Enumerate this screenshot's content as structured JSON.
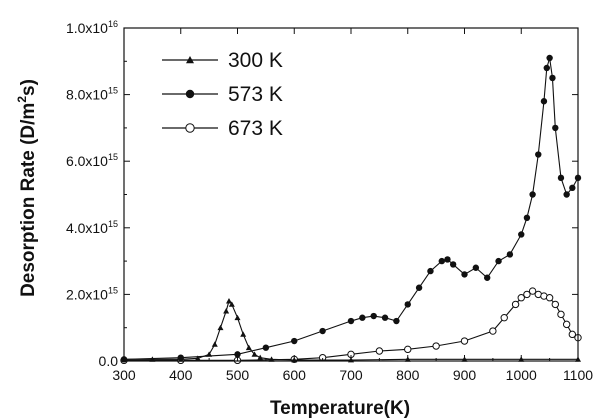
{
  "chart_data": {
    "type": "line",
    "title": "",
    "xlabel": "Temperature(K)",
    "ylabel_parts": {
      "pre": "Desorption Rate (D/m",
      "sup": "2",
      "post": "s)"
    },
    "xlim": [
      300,
      1100
    ],
    "ylim": [
      0,
      1e+16
    ],
    "x_ticks": [
      300,
      400,
      500,
      600,
      700,
      800,
      900,
      1000,
      1100
    ],
    "y_ticks": [
      {
        "value": 0,
        "mant": "0.0",
        "exp": ""
      },
      {
        "value": 2000000000000000.0,
        "mant": "2.0x10",
        "exp": "15"
      },
      {
        "value": 4000000000000000.0,
        "mant": "4.0x10",
        "exp": "15"
      },
      {
        "value": 6000000000000000.0,
        "mant": "6.0x10",
        "exp": "15"
      },
      {
        "value": 8000000000000000.0,
        "mant": "8.0x10",
        "exp": "15"
      },
      {
        "value": 1e+16,
        "mant": "1.0x10",
        "exp": "16"
      }
    ],
    "legend_position": "top-left",
    "series": [
      {
        "name": "300 K",
        "marker": "triangle",
        "x": [
          300,
          350,
          400,
          430,
          450,
          460,
          470,
          480,
          485,
          490,
          500,
          510,
          520,
          530,
          540,
          560,
          600,
          700,
          800,
          900,
          1000,
          1100
        ],
        "y": [
          50000000000000.0,
          50000000000000.0,
          50000000000000.0,
          80000000000000.0,
          200000000000000.0,
          500000000000000.0,
          1000000000000000.0,
          1500000000000000.0,
          1800000000000000.0,
          1700000000000000.0,
          1300000000000000.0,
          800000000000000.0,
          400000000000000.0,
          200000000000000.0,
          100000000000000.0,
          50000000000000.0,
          30000000000000.0,
          30000000000000.0,
          50000000000000.0,
          50000000000000.0,
          50000000000000.0,
          50000000000000.0
        ]
      },
      {
        "name": "573 K",
        "marker": "filled-circle",
        "x": [
          300,
          400,
          500,
          550,
          600,
          650,
          700,
          720,
          740,
          760,
          780,
          800,
          820,
          840,
          860,
          870,
          880,
          900,
          920,
          940,
          960,
          980,
          1000,
          1010,
          1020,
          1030,
          1040,
          1045,
          1050,
          1055,
          1060,
          1070,
          1080,
          1090,
          1100
        ],
        "y": [
          50000000000000.0,
          100000000000000.0,
          200000000000000.0,
          400000000000000.0,
          600000000000000.0,
          900000000000000.0,
          1200000000000000.0,
          1300000000000000.0,
          1350000000000000.0,
          1300000000000000.0,
          1200000000000000.0,
          1700000000000000.0,
          2200000000000000.0,
          2700000000000000.0,
          3000000000000000.0,
          3050000000000000.0,
          2900000000000000.0,
          2600000000000000.0,
          2800000000000000.0,
          2500000000000000.0,
          3000000000000000.0,
          3200000000000000.0,
          3800000000000000.0,
          4300000000000000.0,
          5000000000000000.0,
          6200000000000000.0,
          7800000000000000.0,
          8800000000000000.0,
          9100000000000000.0,
          8500000000000000.0,
          7000000000000000.0,
          5500000000000000.0,
          5000000000000000.0,
          5200000000000000.0,
          5500000000000000.0
        ]
      },
      {
        "name": "673 K",
        "marker": "open-circle",
        "x": [
          300,
          400,
          500,
          600,
          650,
          700,
          750,
          800,
          850,
          900,
          950,
          970,
          990,
          1000,
          1010,
          1020,
          1030,
          1040,
          1050,
          1060,
          1070,
          1080,
          1090,
          1100
        ],
        "y": [
          20000000000000.0,
          20000000000000.0,
          20000000000000.0,
          50000000000000.0,
          100000000000000.0,
          200000000000000.0,
          300000000000000.0,
          350000000000000.0,
          450000000000000.0,
          600000000000000.0,
          900000000000000.0,
          1300000000000000.0,
          1700000000000000.0,
          1900000000000000.0,
          2000000000000000.0,
          2100000000000000.0,
          2000000000000000.0,
          1950000000000000.0,
          1900000000000000.0,
          1700000000000000.0,
          1400000000000000.0,
          1100000000000000.0,
          800000000000000.0,
          700000000000000.0
        ]
      }
    ]
  }
}
